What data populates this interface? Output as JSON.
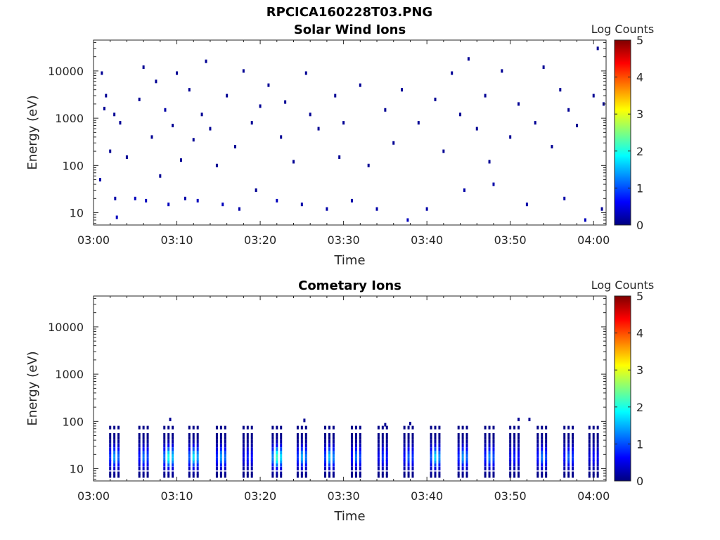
{
  "figure_title": "RPCICA160228T03.PNG",
  "chart_data": [
    {
      "type": "heatmap",
      "title": "Solar Wind Ions",
      "xlabel": "Time",
      "ylabel": "Energy (eV)",
      "x_ticks": [
        "03:00",
        "03:10",
        "03:20",
        "03:30",
        "03:40",
        "03:50",
        "04:00"
      ],
      "x_tick_minutes": [
        0,
        10,
        20,
        30,
        40,
        50,
        60
      ],
      "xlim_minutes": [
        0,
        61.5
      ],
      "y_scale": "log",
      "y_ticks": [
        "10",
        "100",
        "1000",
        "10000"
      ],
      "y_tick_values": [
        10,
        100,
        1000,
        10000
      ],
      "ylim": [
        5.5,
        45000
      ],
      "colorbar": {
        "label": "Log Counts",
        "ticks": [
          "0",
          "1",
          "2",
          "3",
          "4",
          "5"
        ],
        "range": [
          0,
          5
        ],
        "colormap": "jet"
      },
      "cells": [
        {
          "t": 0.8,
          "e": 50,
          "v": 0.2
        },
        {
          "t": 1.0,
          "e": 9000,
          "v": 0.1
        },
        {
          "t": 1.3,
          "e": 1600,
          "v": 0.1
        },
        {
          "t": 1.5,
          "e": 3000,
          "v": 0.1
        },
        {
          "t": 2.0,
          "e": 200,
          "v": 0.1
        },
        {
          "t": 2.5,
          "e": 1200,
          "v": 0.1
        },
        {
          "t": 2.6,
          "e": 20,
          "v": 0.2
        },
        {
          "t": 2.8,
          "e": 8,
          "v": 0.3
        },
        {
          "t": 3.2,
          "e": 800,
          "v": 0.1
        },
        {
          "t": 4.0,
          "e": 150,
          "v": 0.1
        },
        {
          "t": 5.0,
          "e": 20,
          "v": 0.3
        },
        {
          "t": 5.5,
          "e": 2500,
          "v": 0.1
        },
        {
          "t": 6.0,
          "e": 12000,
          "v": 0.1
        },
        {
          "t": 6.3,
          "e": 18,
          "v": 0.3
        },
        {
          "t": 7.0,
          "e": 400,
          "v": 0.1
        },
        {
          "t": 7.5,
          "e": 6000,
          "v": 0.1
        },
        {
          "t": 8.0,
          "e": 60,
          "v": 0.1
        },
        {
          "t": 8.6,
          "e": 1500,
          "v": 0.2
        },
        {
          "t": 9.0,
          "e": 15,
          "v": 0.3
        },
        {
          "t": 9.5,
          "e": 700,
          "v": 0.1
        },
        {
          "t": 10.0,
          "e": 9000,
          "v": 0.1
        },
        {
          "t": 10.5,
          "e": 130,
          "v": 0.1
        },
        {
          "t": 11.0,
          "e": 20,
          "v": 0.2
        },
        {
          "t": 11.5,
          "e": 4000,
          "v": 0.1
        },
        {
          "t": 12.0,
          "e": 350,
          "v": 0.1
        },
        {
          "t": 12.5,
          "e": 18,
          "v": 0.3
        },
        {
          "t": 13.0,
          "e": 1200,
          "v": 0.1
        },
        {
          "t": 13.5,
          "e": 16000,
          "v": 0.1
        },
        {
          "t": 14.0,
          "e": 600,
          "v": 0.1
        },
        {
          "t": 14.8,
          "e": 100,
          "v": 0.1
        },
        {
          "t": 15.5,
          "e": 15,
          "v": 0.3
        },
        {
          "t": 16.0,
          "e": 3000,
          "v": 0.1
        },
        {
          "t": 17.0,
          "e": 250,
          "v": 0.1
        },
        {
          "t": 17.5,
          "e": 12,
          "v": 0.2
        },
        {
          "t": 18.0,
          "e": 10000,
          "v": 0.1
        },
        {
          "t": 19.0,
          "e": 800,
          "v": 0.1
        },
        {
          "t": 19.5,
          "e": 30,
          "v": 0.1
        },
        {
          "t": 20.0,
          "e": 1800,
          "v": 0.1
        },
        {
          "t": 21.0,
          "e": 5000,
          "v": 0.1
        },
        {
          "t": 22.0,
          "e": 18,
          "v": 0.3
        },
        {
          "t": 22.5,
          "e": 400,
          "v": 0.1
        },
        {
          "t": 23.0,
          "e": 2200,
          "v": 0.1
        },
        {
          "t": 24.0,
          "e": 120,
          "v": 0.1
        },
        {
          "t": 25.0,
          "e": 15,
          "v": 0.2
        },
        {
          "t": 25.5,
          "e": 9000,
          "v": 0.1
        },
        {
          "t": 26.0,
          "e": 1200,
          "v": 0.1
        },
        {
          "t": 27.0,
          "e": 600,
          "v": 0.1
        },
        {
          "t": 28.0,
          "e": 12,
          "v": 0.2
        },
        {
          "t": 29.0,
          "e": 3000,
          "v": 0.1
        },
        {
          "t": 29.5,
          "e": 150,
          "v": 0.1
        },
        {
          "t": 30.0,
          "e": 800,
          "v": 0.1
        },
        {
          "t": 31.0,
          "e": 18,
          "v": 0.2
        },
        {
          "t": 32.0,
          "e": 5000,
          "v": 0.1
        },
        {
          "t": 33.0,
          "e": 100,
          "v": 0.1
        },
        {
          "t": 34.0,
          "e": 12,
          "v": 0.2
        },
        {
          "t": 35.0,
          "e": 1500,
          "v": 0.1
        },
        {
          "t": 36.0,
          "e": 300,
          "v": 0.1
        },
        {
          "t": 37.0,
          "e": 4000,
          "v": 0.1
        },
        {
          "t": 37.7,
          "e": 7,
          "v": 0.3
        },
        {
          "t": 39.0,
          "e": 800,
          "v": 0.1
        },
        {
          "t": 40.0,
          "e": 12,
          "v": 0.2
        },
        {
          "t": 41.0,
          "e": 2500,
          "v": 0.1
        },
        {
          "t": 42.0,
          "e": 200,
          "v": 0.1
        },
        {
          "t": 43.0,
          "e": 9000,
          "v": 0.1
        },
        {
          "t": 44.0,
          "e": 1200,
          "v": 0.1
        },
        {
          "t": 44.5,
          "e": 30,
          "v": 0.2
        },
        {
          "t": 45.0,
          "e": 18000,
          "v": 0.1
        },
        {
          "t": 46.0,
          "e": 600,
          "v": 0.1
        },
        {
          "t": 47.0,
          "e": 3000,
          "v": 0.1
        },
        {
          "t": 47.5,
          "e": 120,
          "v": 0.1
        },
        {
          "t": 48.0,
          "e": 40,
          "v": 0.2
        },
        {
          "t": 49.0,
          "e": 10000,
          "v": 0.1
        },
        {
          "t": 50.0,
          "e": 400,
          "v": 0.1
        },
        {
          "t": 51.0,
          "e": 2000,
          "v": 0.1
        },
        {
          "t": 52.0,
          "e": 15,
          "v": 0.2
        },
        {
          "t": 53.0,
          "e": 800,
          "v": 0.1
        },
        {
          "t": 54.0,
          "e": 12000,
          "v": 0.1
        },
        {
          "t": 55.0,
          "e": 250,
          "v": 0.1
        },
        {
          "t": 56.0,
          "e": 4000,
          "v": 0.1
        },
        {
          "t": 56.5,
          "e": 20,
          "v": 0.2
        },
        {
          "t": 57.0,
          "e": 1500,
          "v": 0.1
        },
        {
          "t": 58.0,
          "e": 700,
          "v": 0.1
        },
        {
          "t": 59.0,
          "e": 7,
          "v": 0.3
        },
        {
          "t": 60.0,
          "e": 3000,
          "v": 0.1
        },
        {
          "t": 60.5,
          "e": 30000,
          "v": 0.1
        },
        {
          "t": 61.0,
          "e": 12,
          "v": 0.1
        },
        {
          "t": 61.2,
          "e": 2000,
          "v": 0.1
        }
      ]
    },
    {
      "type": "heatmap",
      "title": "Cometary Ions",
      "xlabel": "Time",
      "ylabel": "Energy (eV)",
      "x_ticks": [
        "03:00",
        "03:10",
        "03:20",
        "03:30",
        "03:40",
        "03:50",
        "04:00"
      ],
      "x_tick_minutes": [
        0,
        10,
        20,
        30,
        40,
        50,
        60
      ],
      "xlim_minutes": [
        0,
        61.5
      ],
      "y_scale": "log",
      "y_ticks": [
        "10",
        "100",
        "1000",
        "10000"
      ],
      "y_tick_values": [
        10,
        100,
        1000,
        10000
      ],
      "ylim": [
        5.5,
        45000
      ],
      "colorbar": {
        "label": "Log Counts",
        "ticks": [
          "0",
          "1",
          "2",
          "3",
          "4",
          "5"
        ],
        "range": [
          0,
          5
        ],
        "colormap": "jet"
      },
      "bursts": [
        {
          "t": 2.5,
          "v": 1.4
        },
        {
          "t": 6.0,
          "v": 1.2
        },
        {
          "t": 9.0,
          "v": 2.0
        },
        {
          "t": 12.0,
          "v": 1.8
        },
        {
          "t": 15.3,
          "v": 1.4
        },
        {
          "t": 18.5,
          "v": 0.8
        },
        {
          "t": 22.0,
          "v": 2.2
        },
        {
          "t": 25.0,
          "v": 1.5
        },
        {
          "t": 28.3,
          "v": 1.6
        },
        {
          "t": 31.5,
          "v": 1.2
        },
        {
          "t": 34.7,
          "v": 0.9
        },
        {
          "t": 37.8,
          "v": 1.1
        },
        {
          "t": 41.0,
          "v": 1.7
        },
        {
          "t": 44.3,
          "v": 1.4
        },
        {
          "t": 47.5,
          "v": 1.3
        },
        {
          "t": 50.5,
          "v": 0.8
        },
        {
          "t": 53.8,
          "v": 1.2
        },
        {
          "t": 57.0,
          "v": 1.1
        },
        {
          "t": 60.0,
          "v": 0.7
        }
      ],
      "extra_cells": [
        {
          "t": 9.2,
          "e": 110,
          "v": 0.1
        },
        {
          "t": 25.3,
          "e": 105,
          "v": 0.1
        },
        {
          "t": 35.0,
          "e": 85,
          "v": 0.1
        },
        {
          "t": 38.0,
          "e": 90,
          "v": 0.1
        },
        {
          "t": 51.0,
          "e": 110,
          "v": 0.1
        },
        {
          "t": 52.3,
          "e": 110,
          "v": 0.1
        }
      ]
    }
  ]
}
